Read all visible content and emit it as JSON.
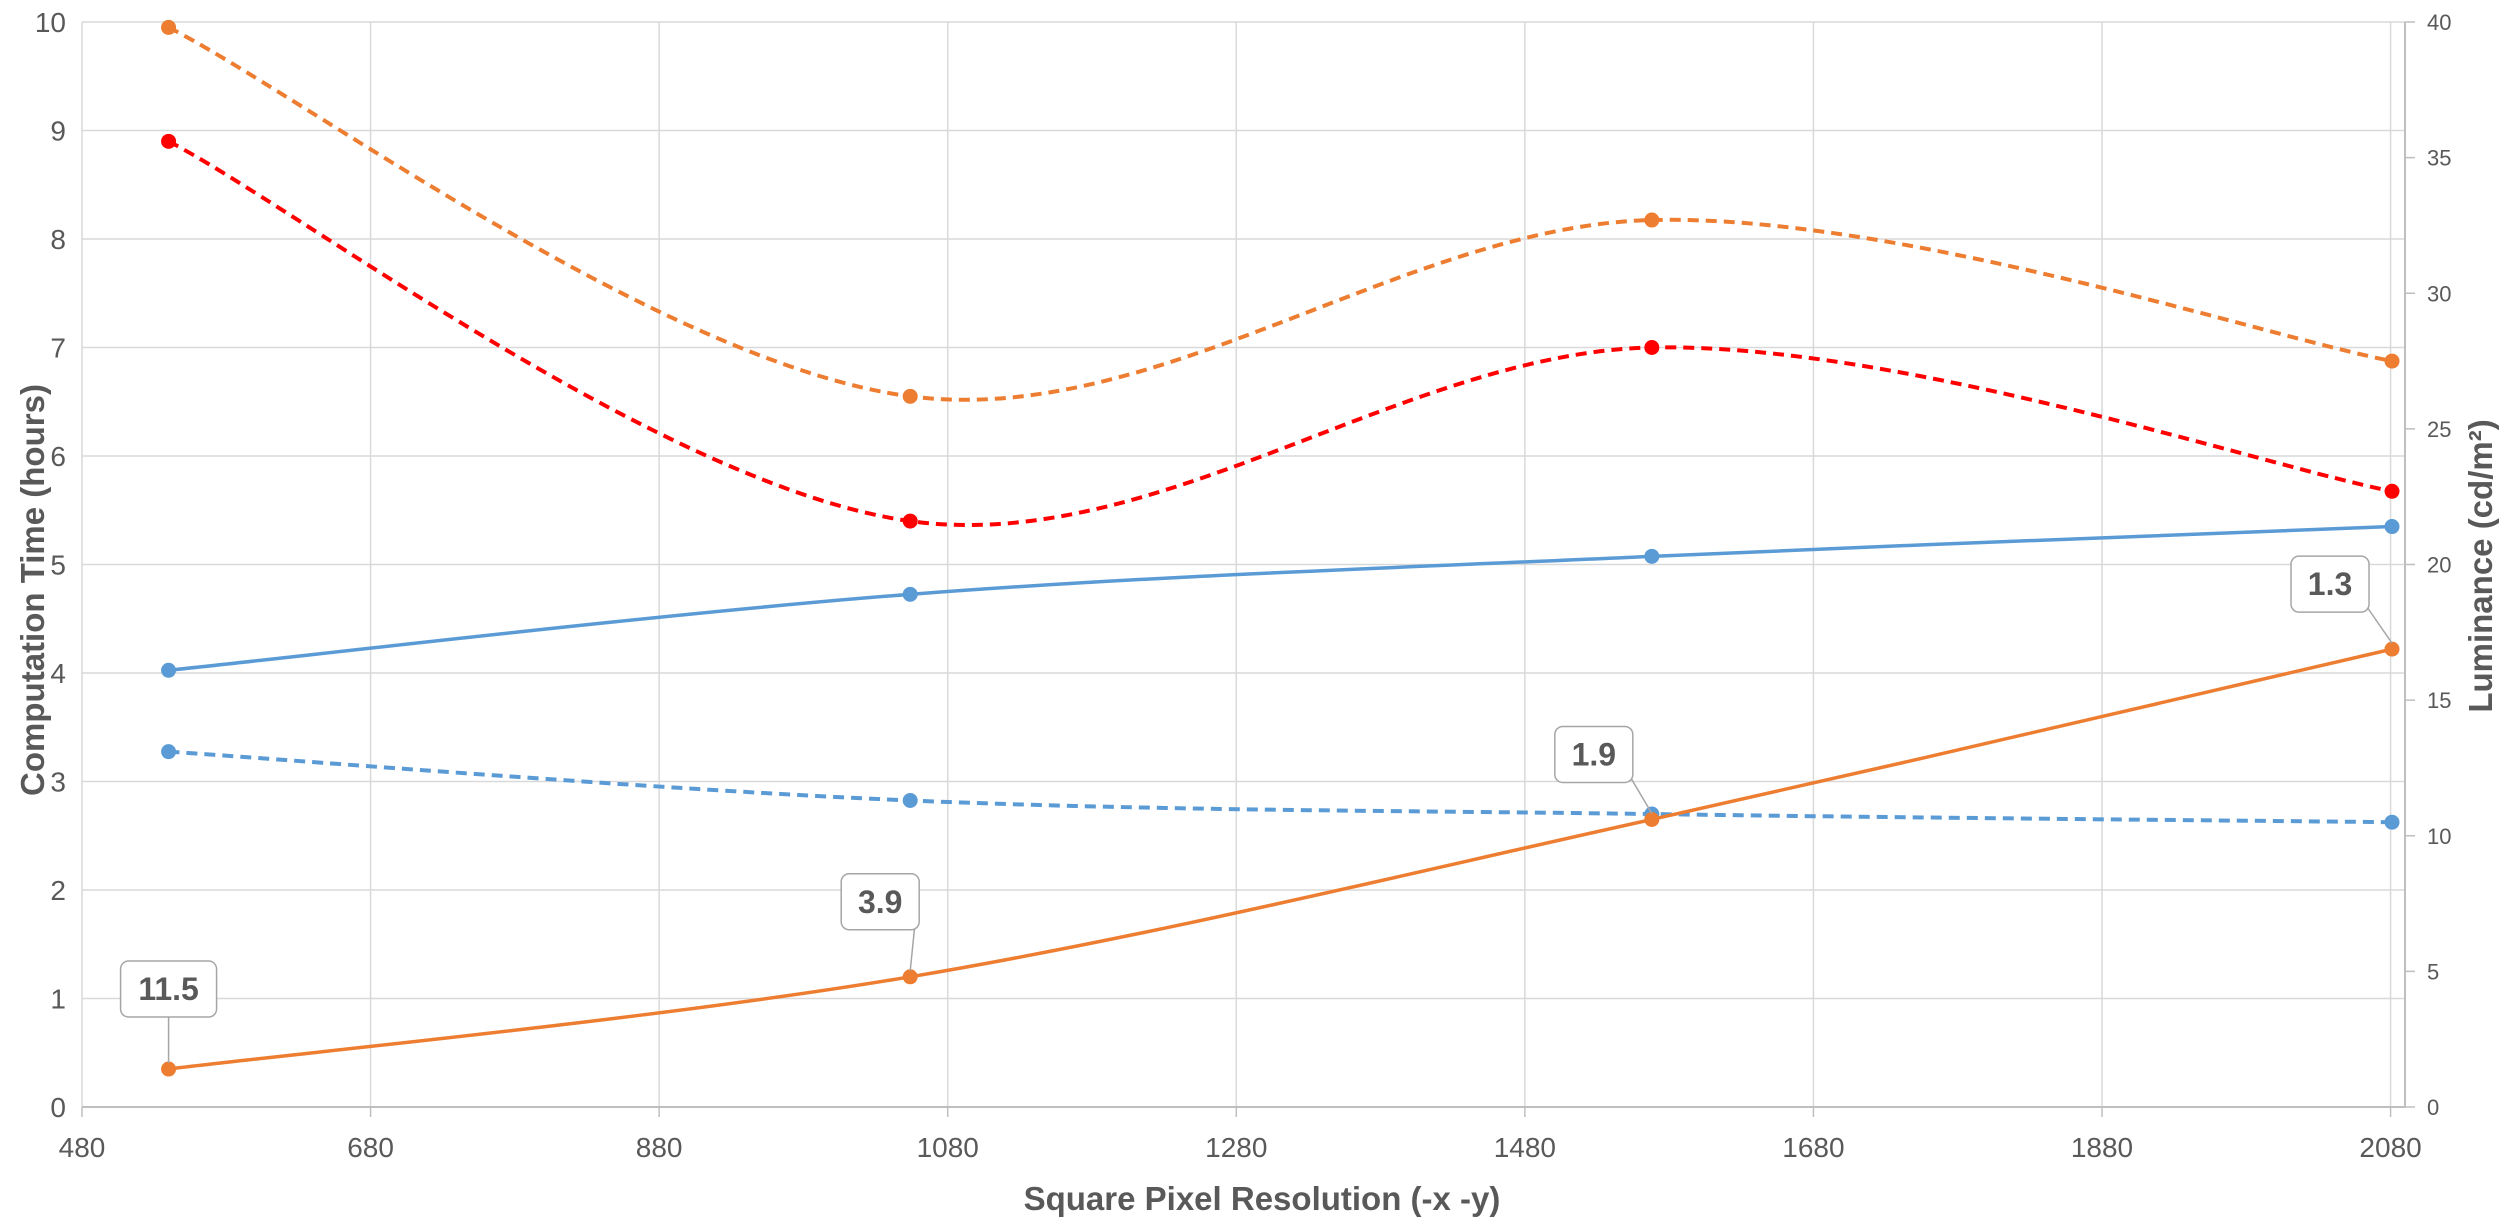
{
  "chart_data": {
    "type": "line",
    "title": "",
    "xlabel": "Square Pixel Resolution (-x -y)",
    "ylabel": "Computation Time (hours)",
    "y2label": "Luminance (cd/m²)",
    "xlim": [
      480,
      2090
    ],
    "ylim": [
      0,
      10
    ],
    "y2lim": [
      0,
      40
    ],
    "x_ticks": [
      480,
      680,
      880,
      1080,
      1280,
      1480,
      1680,
      1880,
      2080
    ],
    "y_ticks": [
      0,
      1,
      2,
      3,
      4,
      5,
      6,
      7,
      8,
      9,
      10
    ],
    "y2_ticks": [
      0,
      5,
      10,
      15,
      20,
      25,
      30,
      35,
      40
    ],
    "grid": true,
    "legend": "none",
    "x": [
      540,
      1054,
      1568,
      2081
    ],
    "series": [
      {
        "axis": "left",
        "color": "#ed7d31",
        "style": "solid",
        "values": [
          0.35,
          1.2,
          2.65,
          4.22
        ],
        "labels": [
          "11.5",
          "3.9",
          "1.9",
          "1.3"
        ]
      },
      {
        "axis": "right",
        "color": "#ed7d31",
        "style": "dashed",
        "values": [
          39.8,
          26.2,
          32.7,
          27.5
        ]
      },
      {
        "axis": "right",
        "color": "#ff0000",
        "style": "dashed",
        "values": [
          35.6,
          21.6,
          28.0,
          22.7
        ]
      },
      {
        "axis": "right",
        "color": "#5b9bd5",
        "style": "solid",
        "values": [
          16.1,
          18.9,
          20.3,
          21.4
        ]
      },
      {
        "axis": "right",
        "color": "#5b9bd5",
        "style": "dashed",
        "values": [
          13.1,
          11.3,
          10.8,
          10.5
        ]
      }
    ]
  }
}
